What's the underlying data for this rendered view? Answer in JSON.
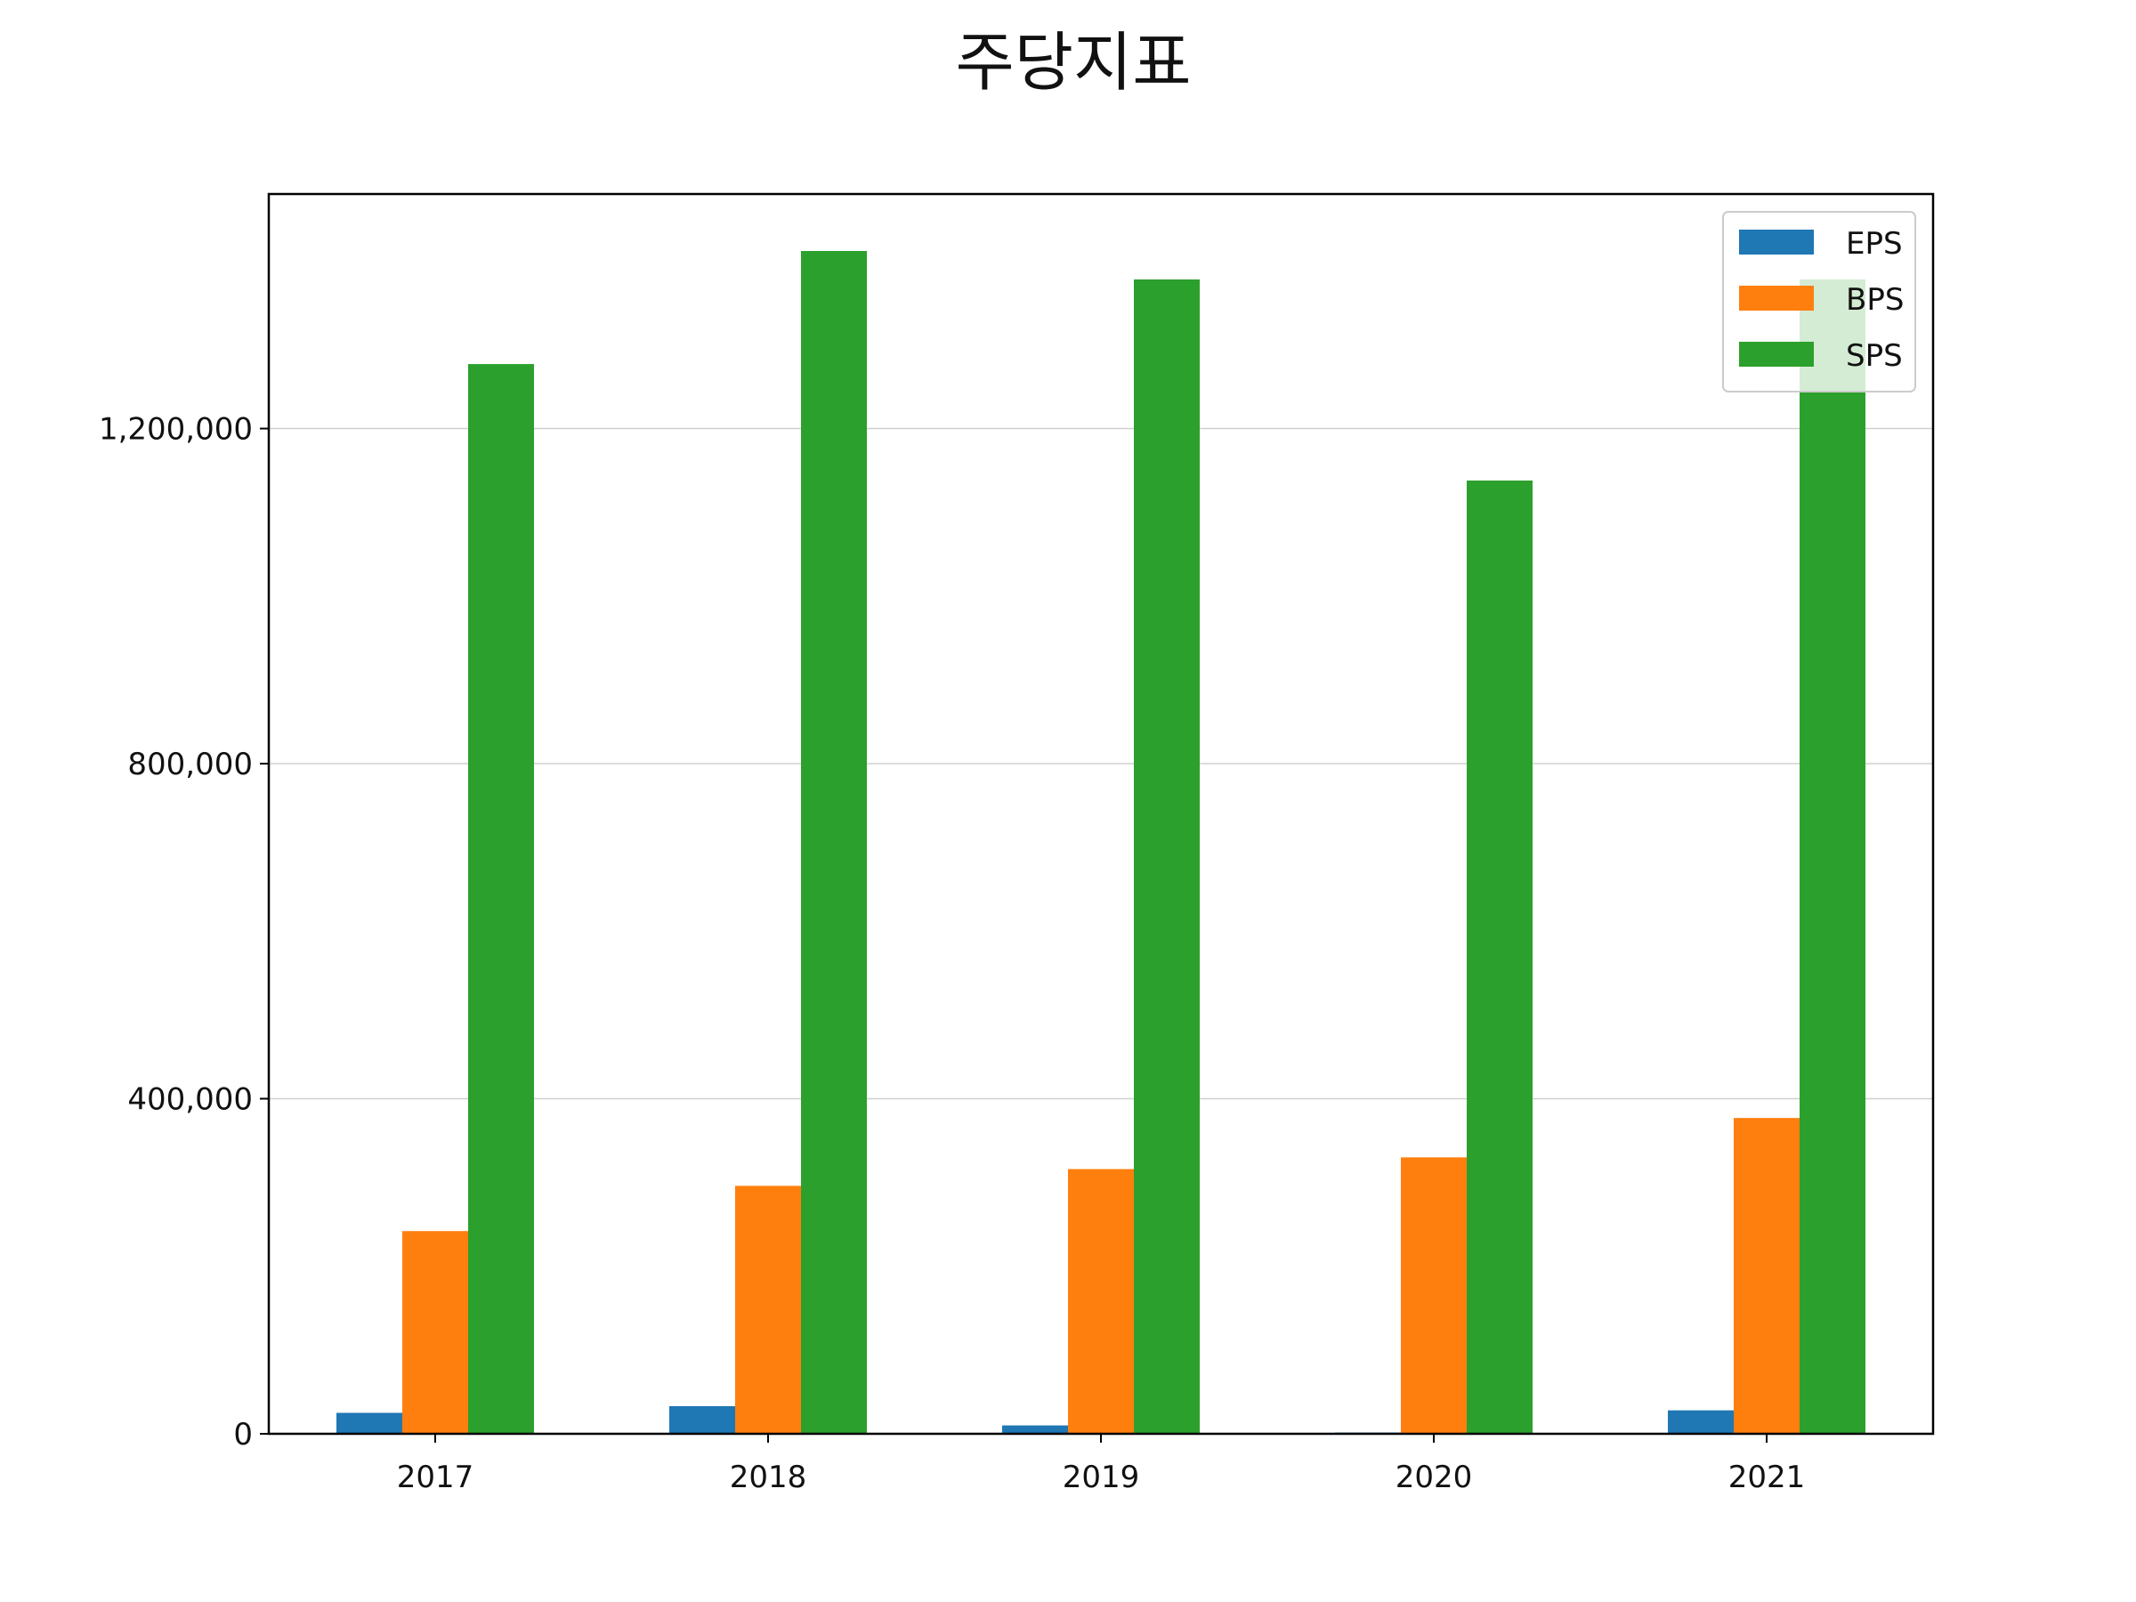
{
  "chart_data": {
    "type": "bar",
    "title": "주당지표",
    "xlabel": "",
    "ylabel": "",
    "categories": [
      "2017",
      "2018",
      "2019",
      "2020",
      "2021"
    ],
    "series": [
      {
        "name": "EPS",
        "color": "#1f77b4",
        "values": [
          25000,
          33000,
          10000,
          1500,
          28000
        ]
      },
      {
        "name": "BPS",
        "color": "#ff7f0e",
        "values": [
          242000,
          296000,
          316000,
          330000,
          377000
        ]
      },
      {
        "name": "SPS",
        "color": "#2ca02c",
        "values": [
          1277000,
          1412000,
          1378000,
          1138000,
          1378000
        ]
      }
    ],
    "ylim": [
      0,
      1480000
    ],
    "yticks": [
      0,
      400000,
      800000,
      1200000
    ],
    "ytick_labels": [
      "0",
      "400,000",
      "800,000",
      "1,200,000"
    ],
    "grid": "y-major",
    "legend_position": "top-right"
  }
}
